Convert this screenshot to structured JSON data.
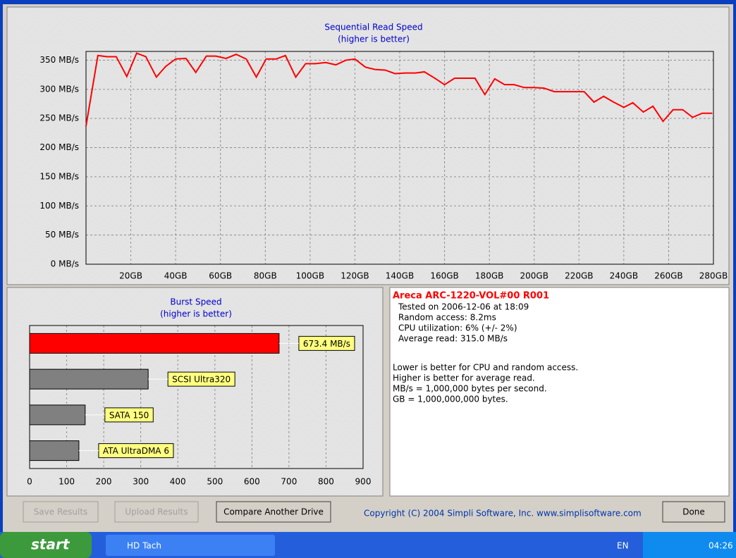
{
  "chart_data": [
    {
      "type": "line",
      "title": "Sequential Read Speed",
      "subtitle": "(higher is better)",
      "x": [
        0,
        5.3,
        9.4,
        13.5,
        18.2,
        22.6,
        26.7,
        31.4,
        35.5,
        40,
        44.6,
        49,
        53.7,
        58,
        62.5,
        67,
        71.5,
        76,
        80.4,
        84.8,
        89,
        93.6,
        98,
        102.4,
        107,
        111.5,
        116,
        120,
        124.7,
        129,
        133.5,
        137.9,
        142.5,
        147,
        151,
        155.7,
        160,
        164.5,
        169,
        173.6,
        178,
        182.4,
        186.8,
        191,
        195.6,
        200,
        204.4,
        209,
        213.5,
        218,
        222.3,
        226.7,
        231,
        235.5,
        240,
        244,
        248.7,
        253,
        257.5,
        262,
        266.3,
        270.7,
        275,
        279.5
      ],
      "values": [
        237,
        358,
        356,
        356,
        322,
        362,
        356,
        321,
        339,
        352,
        353,
        329,
        357,
        357,
        353,
        360,
        352,
        321,
        352,
        352,
        358,
        321,
        344,
        344,
        346,
        342,
        350,
        352,
        338,
        334,
        333,
        327,
        328,
        328,
        330,
        319,
        308,
        319,
        319,
        319,
        291,
        318,
        308,
        308,
        303,
        303,
        302,
        296,
        296,
        296,
        296,
        278,
        288,
        278,
        269,
        277,
        261,
        271,
        245,
        265,
        265,
        252,
        259,
        259
      ],
      "color": "#ff0000",
      "xlim": [
        0,
        280
      ],
      "ylim": [
        0,
        365
      ],
      "xticks": [
        {
          "value": 20,
          "label": "20GB"
        },
        {
          "value": 40,
          "label": "40GB"
        },
        {
          "value": 60,
          "label": "60GB"
        },
        {
          "value": 80,
          "label": "80GB"
        },
        {
          "value": 100,
          "label": "100GB"
        },
        {
          "value": 120,
          "label": "120GB"
        },
        {
          "value": 140,
          "label": "140GB"
        },
        {
          "value": 160,
          "label": "160GB"
        },
        {
          "value": 180,
          "label": "180GB"
        },
        {
          "value": 200,
          "label": "200GB"
        },
        {
          "value": 220,
          "label": "220GB"
        },
        {
          "value": 240,
          "label": "240GB"
        },
        {
          "value": 260,
          "label": "260GB"
        },
        {
          "value": 280,
          "label": "280GB"
        }
      ],
      "yticks": [
        {
          "value": 0,
          "label": "0 MB/s"
        },
        {
          "value": 50,
          "label": "50 MB/s"
        },
        {
          "value": 100,
          "label": "100 MB/s"
        },
        {
          "value": 150,
          "label": "150 MB/s"
        },
        {
          "value": 200,
          "label": "200 MB/s"
        },
        {
          "value": 250,
          "label": "250 MB/s"
        },
        {
          "value": 300,
          "label": "300 MB/s"
        },
        {
          "value": 350,
          "label": "350 MB/s"
        }
      ],
      "grid": true
    },
    {
      "type": "bar",
      "orientation": "horizontal",
      "title": "Burst Speed",
      "subtitle": "(higher is better)",
      "categories": [
        null,
        "SCSI Ultra320",
        "SATA 150",
        "ATA UltraDMA 6"
      ],
      "values": [
        673.4,
        320,
        150,
        133
      ],
      "value_labels": [
        "673.4 MB/s",
        null,
        null,
        null
      ],
      "colors": [
        "#ff0000",
        "#808080",
        "#808080",
        "#808080"
      ],
      "xlim": [
        0,
        900
      ],
      "xticks": [
        0,
        100,
        200,
        300,
        400,
        500,
        600,
        700,
        800,
        900
      ],
      "grid": true
    }
  ],
  "info": {
    "drive": "Areca ARC-1220-VOL#00 R001",
    "details": [
      "Tested on 2006-12-06 at 18:09",
      "Random access: 8.2ms",
      "CPU utilization: 6% (+/- 2%)",
      "Average read: 315.0 MB/s"
    ],
    "notes": [
      "Lower is better for CPU and random access.",
      "Higher is better for average read.",
      "MB/s = 1,000,000 bytes per second.",
      "GB = 1,000,000,000 bytes."
    ]
  },
  "buttons": [
    {
      "label": "Save Results",
      "enabled": false
    },
    {
      "label": "Upload Results",
      "enabled": false
    },
    {
      "label": "Compare Another Drive",
      "enabled": true
    },
    {
      "label": "Done",
      "enabled": true
    }
  ],
  "copyright": "Copyright (C) 2004 Simpli Software, Inc. www.simplisoftware.com",
  "taskbar": {
    "start": "start",
    "task": "HD Tach",
    "language": "EN",
    "clock": "04:26"
  }
}
